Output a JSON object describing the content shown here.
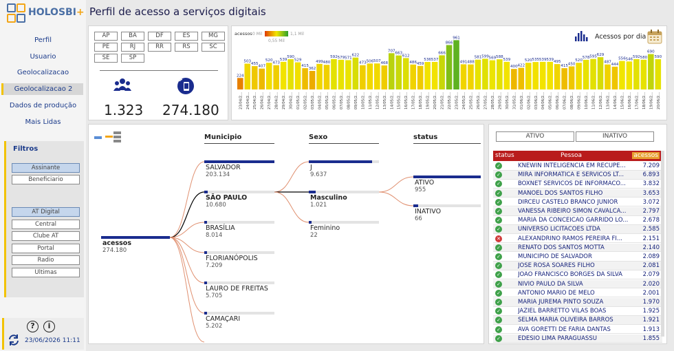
{
  "app": {
    "logo_text": "HOLOSBI",
    "logo_plus": "+",
    "title": "Perfil de acesso a serviços digitais"
  },
  "colors": {
    "accent": "#f2c200",
    "nav": "#1a3a8a",
    "bar_dark": "#1a2c8e",
    "table_header": "#b91c1c"
  },
  "nav": [
    {
      "label": "Perfil"
    },
    {
      "label": "Usuario"
    },
    {
      "label": "Geolocalizacao"
    },
    {
      "label": "Geolocalizacao 2",
      "active": true
    },
    {
      "label": "Dados de produção"
    },
    {
      "label": "Mais Lidas"
    }
  ],
  "filters": {
    "title": "Filtros",
    "group1": [
      "Assinante",
      "Beneficiario"
    ],
    "group2": [
      "AT Digital",
      "Central",
      "Clube AT",
      "Portal",
      "Radio",
      "Ultimas"
    ]
  },
  "footer": {
    "help_icon": "?",
    "info_icon": "i",
    "datetime": "23/06/2026 11:11"
  },
  "uf": [
    "AP",
    "BA",
    "DF",
    "ES",
    "MG",
    "PE",
    "RJ",
    "RR",
    "RS",
    "SC",
    "SE",
    "SP"
  ],
  "stats": {
    "users": "1.323",
    "accesses": "274.180"
  },
  "daily": {
    "title": "Acessos por dia",
    "legend_label": "acessos",
    "legend_min": "0 Mil",
    "legend_mid": "0,55 Mil",
    "legend_max": "1,1 Mil"
  },
  "chart_data": {
    "type": "bar",
    "title": "Acessos por dia",
    "values": [
      224,
      503,
      455,
      407,
      520,
      473,
      539,
      590,
      529,
      415,
      362,
      499,
      480,
      592,
      579,
      571,
      622,
      473,
      506,
      507,
      468,
      707,
      663,
      612,
      486,
      459,
      536,
      537,
      666,
      866,
      961,
      491,
      488,
      581,
      599,
      569,
      588,
      539,
      400,
      422,
      520,
      535,
      539,
      539,
      495,
      415,
      450,
      520,
      578,
      595,
      629,
      487,
      444,
      556,
      546,
      592,
      580,
      690,
      590
    ],
    "categories": [
      "23/04/2...",
      "24/04/2...",
      "25/04/2...",
      "26/04/2...",
      "27/04/2...",
      "28/04/2...",
      "29/04/2...",
      "30/04/2...",
      "01/05/2...",
      "02/05/2...",
      "03/05/2...",
      "04/05/2...",
      "05/05/2...",
      "06/05/2...",
      "07/05/2...",
      "08/05/2...",
      "09/05/2...",
      "10/05/2...",
      "11/05/2...",
      "12/05/2...",
      "13/05/2...",
      "14/05/2...",
      "15/05/2...",
      "16/05/2...",
      "17/05/2...",
      "18/05/2...",
      "19/05/2...",
      "20/05/2...",
      "21/05/2...",
      "22/05/2...",
      "23/05/2...",
      "24/05/2...",
      "25/05/2...",
      "26/05/2...",
      "27/05/2...",
      "28/05/2...",
      "29/05/2...",
      "30/05/2...",
      "31/05/2...",
      "01/06/2...",
      "02/06/2...",
      "03/06/2...",
      "04/06/2...",
      "05/06/2...",
      "06/06/2...",
      "07/06/2...",
      "08/06/2...",
      "09/06/2...",
      "10/06/2...",
      "11/06/2...",
      "12/06/2...",
      "13/06/2...",
      "14/06/2...",
      "15/06/2...",
      "16/06/2...",
      "17/06/2...",
      "18/06/2...",
      "19/06/2...",
      "20/06/2..."
    ],
    "ylim": [
      0,
      1100
    ]
  },
  "tree": {
    "headers": [
      "Municipio",
      "Sexo",
      "status"
    ],
    "root": {
      "label": "acessos",
      "value": "274.180"
    },
    "municipios": [
      {
        "label": "SALVADOR",
        "value": "203.134",
        "frac": 1.0
      },
      {
        "label": "SÃO PAULO",
        "value": "10.680",
        "frac": 0.05
      },
      {
        "label": "BRASÍLIA",
        "value": "8.014",
        "frac": 0.04
      },
      {
        "label": "FLORIANÓPOLIS",
        "value": "7.209",
        "frac": 0.035
      },
      {
        "label": "LAURO DE FREITAS",
        "value": "5.705",
        "frac": 0.028
      },
      {
        "label": "CAMAÇARI",
        "value": "5.202",
        "frac": 0.026
      }
    ],
    "sexo": [
      {
        "label": "J",
        "value": "9.637",
        "frac": 0.9
      },
      {
        "label": "Masculino",
        "value": "1.021",
        "frac": 0.1
      },
      {
        "label": "Feminino",
        "value": "22",
        "frac": 0.02
      }
    ],
    "status": [
      {
        "label": "ATIVO",
        "value": "955",
        "frac": 1.0
      },
      {
        "label": "INATIVO",
        "value": "66",
        "frac": 0.07
      }
    ]
  },
  "table": {
    "toggle_active": "ATIVO",
    "toggle_inactive": "INATIVO",
    "col_status": "status",
    "col_person": "Pessoa",
    "col_access": "acessos",
    "rows": [
      {
        "ok": true,
        "name": "KNEWIN INTELIGENCIA EM RECUPE...",
        "value": "7.209"
      },
      {
        "ok": true,
        "name": "MIRA INFORMATICA E SERVICOS LT...",
        "value": "6.893"
      },
      {
        "ok": true,
        "name": "BOXNET SERVICOS DE INFORMACO...",
        "value": "3.832"
      },
      {
        "ok": true,
        "name": "MANOEL DOS SANTOS FILHO",
        "value": "3.653"
      },
      {
        "ok": true,
        "name": "DIRCEU CASTELO BRANCO JUNIOR",
        "value": "3.072"
      },
      {
        "ok": true,
        "name": "VANESSA RIBEIRO SIMON CAVALCA...",
        "value": "2.797"
      },
      {
        "ok": true,
        "name": "MARIA DA CONCEICAO GARRIDO LO...",
        "value": "2.678"
      },
      {
        "ok": true,
        "name": "UNIVERSO LICITACOES LTDA",
        "value": "2.585"
      },
      {
        "ok": false,
        "name": "ALEXANDRINO RAMOS PEREIRA FI...",
        "value": "2.151"
      },
      {
        "ok": true,
        "name": "RENATO DOS SANTOS MOTTA",
        "value": "2.140"
      },
      {
        "ok": true,
        "name": "MUNICIPIO DE SALVADOR",
        "value": "2.089"
      },
      {
        "ok": true,
        "name": "JOSE ROSA SOARES FILHO",
        "value": "2.081"
      },
      {
        "ok": true,
        "name": "JOAO FRANCISCO BORGES DA SILVA",
        "value": "2.079"
      },
      {
        "ok": true,
        "name": "NIVIO PAULO DA SILVA",
        "value": "2.020"
      },
      {
        "ok": true,
        "name": "ANTONIO MARIO DE MELO",
        "value": "2.001"
      },
      {
        "ok": true,
        "name": "MARIA JUREMA PINTO SOUZA",
        "value": "1.970"
      },
      {
        "ok": true,
        "name": "JAZIEL BARRETTO VILAS BOAS",
        "value": "1.925"
      },
      {
        "ok": true,
        "name": "SELMA MARIA OLIVEIRA BARROS",
        "value": "1.921"
      },
      {
        "ok": true,
        "name": "AVA GORETTI DE FARIA DANTAS",
        "value": "1.913"
      },
      {
        "ok": true,
        "name": "EDESIO LIMA PARAGUASSU",
        "value": "1.855"
      }
    ]
  }
}
